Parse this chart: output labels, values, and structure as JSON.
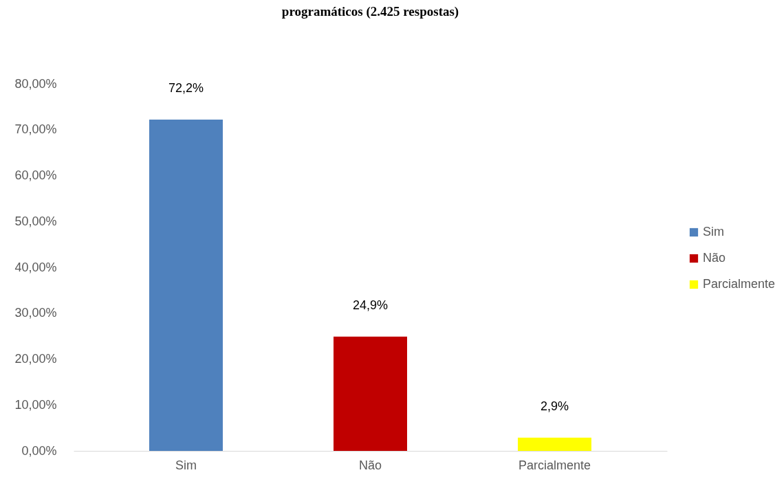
{
  "chart_data": {
    "type": "bar",
    "title": "programáticos (2.425 respostas)",
    "categories": [
      "Sim",
      "Não",
      "Parcialmente"
    ],
    "series": [
      {
        "name": "Sim",
        "color": "#4f81bd",
        "values": [
          72.2,
          null,
          null
        ]
      },
      {
        "name": "Não",
        "color": "#c00000",
        "values": [
          null,
          24.9,
          null
        ]
      },
      {
        "name": "Parcialmente",
        "color": "#ffff00",
        "values": [
          null,
          null,
          2.9
        ]
      }
    ],
    "value_labels": [
      "72,2%",
      "24,9%",
      "2,9%"
    ],
    "ylim": [
      0,
      80
    ],
    "yticks": [
      {
        "value": 0,
        "label": "0,00%"
      },
      {
        "value": 10,
        "label": "10,00%"
      },
      {
        "value": 20,
        "label": "20,00%"
      },
      {
        "value": 30,
        "label": "30,00%"
      },
      {
        "value": 40,
        "label": "40,00%"
      },
      {
        "value": 50,
        "label": "50,00%"
      },
      {
        "value": 60,
        "label": "60,00%"
      },
      {
        "value": 70,
        "label": "70,00%"
      },
      {
        "value": 80,
        "label": "80,00%"
      }
    ],
    "grid": false,
    "legend": "right"
  }
}
